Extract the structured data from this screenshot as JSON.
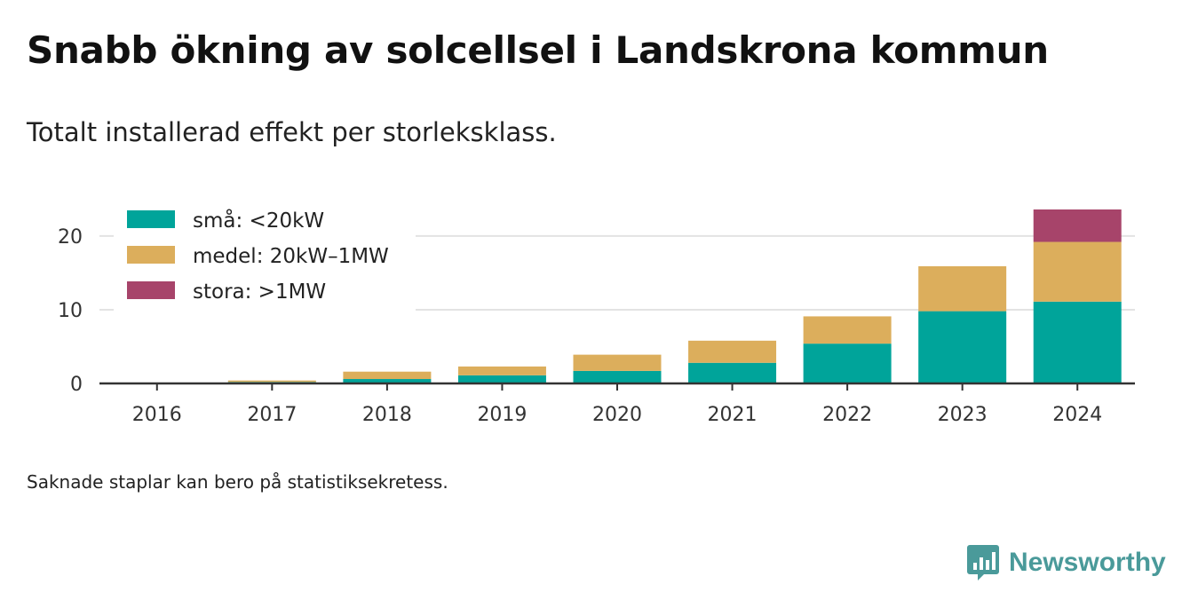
{
  "title": "Snabb ökning av solcellsel i Landskrona kommun",
  "subtitle": "Totalt installerad effekt per storleksklass.",
  "note": "Saknade staplar kan bero på statistiksekretess.",
  "brand": {
    "name": "Newsworthy",
    "color": "#4a9a9a"
  },
  "colors": {
    "grid": "#e3e3e3",
    "axis": "#333333"
  },
  "chart_data": {
    "type": "bar",
    "stacked": true,
    "categories": [
      "2016",
      "2017",
      "2018",
      "2019",
      "2020",
      "2021",
      "2022",
      "2023",
      "2024"
    ],
    "series": [
      {
        "name": "små: <20kW",
        "color": "#00a49a",
        "values": [
          0.1,
          0.2,
          0.6,
          1.1,
          1.7,
          2.8,
          5.4,
          9.8,
          11.1
        ]
      },
      {
        "name": "medel: 20kW–1MW",
        "color": "#dcae5c",
        "values": [
          0.0,
          0.2,
          1.0,
          1.2,
          2.2,
          3.0,
          3.7,
          6.1,
          8.1
        ]
      },
      {
        "name": "stora: >1MW",
        "color": "#a7446a",
        "values": [
          0,
          0,
          0,
          0,
          0,
          0,
          0,
          0,
          4.4
        ]
      }
    ],
    "yticks": [
      0,
      10,
      20
    ],
    "ylim": [
      0,
      23.6
    ],
    "grid": true,
    "legend": "top-left",
    "xlabel": "",
    "ylabel": ""
  }
}
